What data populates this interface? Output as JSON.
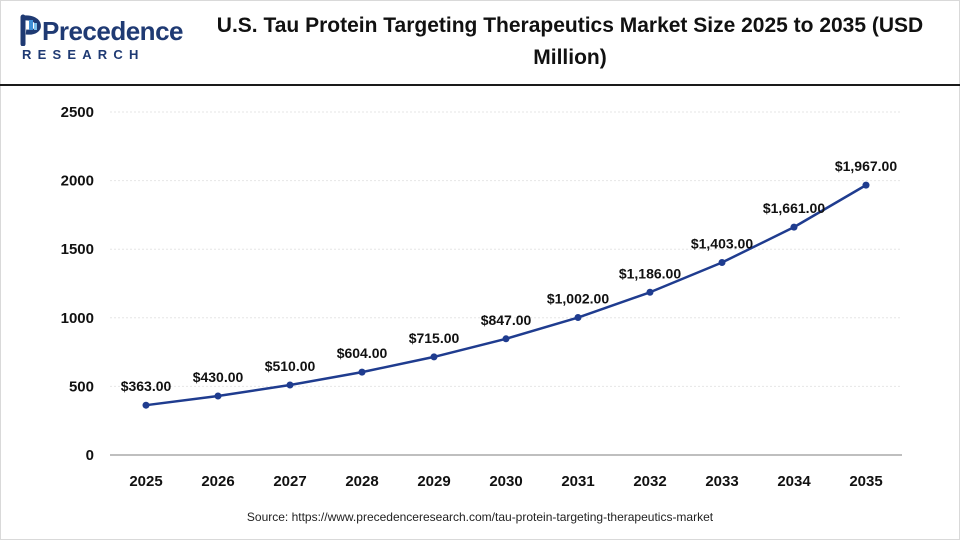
{
  "header": {
    "logo_word": "Precedence",
    "logo_sub": "RESEARCH",
    "title": "U.S. Tau Protein Targeting Therapeutics Market Size 2025 to 2035 (USD Million)"
  },
  "chart_data": {
    "type": "line",
    "title": "U.S. Tau Protein Targeting Therapeutics Market Size 2025 to 2035 (USD Million)",
    "xlabel": "",
    "ylabel": "",
    "categories": [
      "2025",
      "2026",
      "2027",
      "2028",
      "2029",
      "2030",
      "2031",
      "2032",
      "2033",
      "2034",
      "2035"
    ],
    "values": [
      363,
      430,
      510,
      604,
      715,
      847,
      1002,
      1186,
      1403,
      1661,
      1967
    ],
    "data_labels": [
      "$363.00",
      "$430.00",
      "$510.00",
      "$604.00",
      "$715.00",
      "$847.00",
      "$1,002.00",
      "$1,186.00",
      "$1,403.00",
      "$1,661.00",
      "$1,967.00"
    ],
    "ylim": [
      0,
      2500
    ],
    "yticks": [
      0,
      500,
      1000,
      1500,
      2000,
      2500
    ],
    "grid": true,
    "legend": "none",
    "line_color": "#1f3c8f"
  },
  "footer": {
    "source": "Source: https://www.precedenceresearch.com/tau-protein-targeting-therapeutics-market"
  }
}
